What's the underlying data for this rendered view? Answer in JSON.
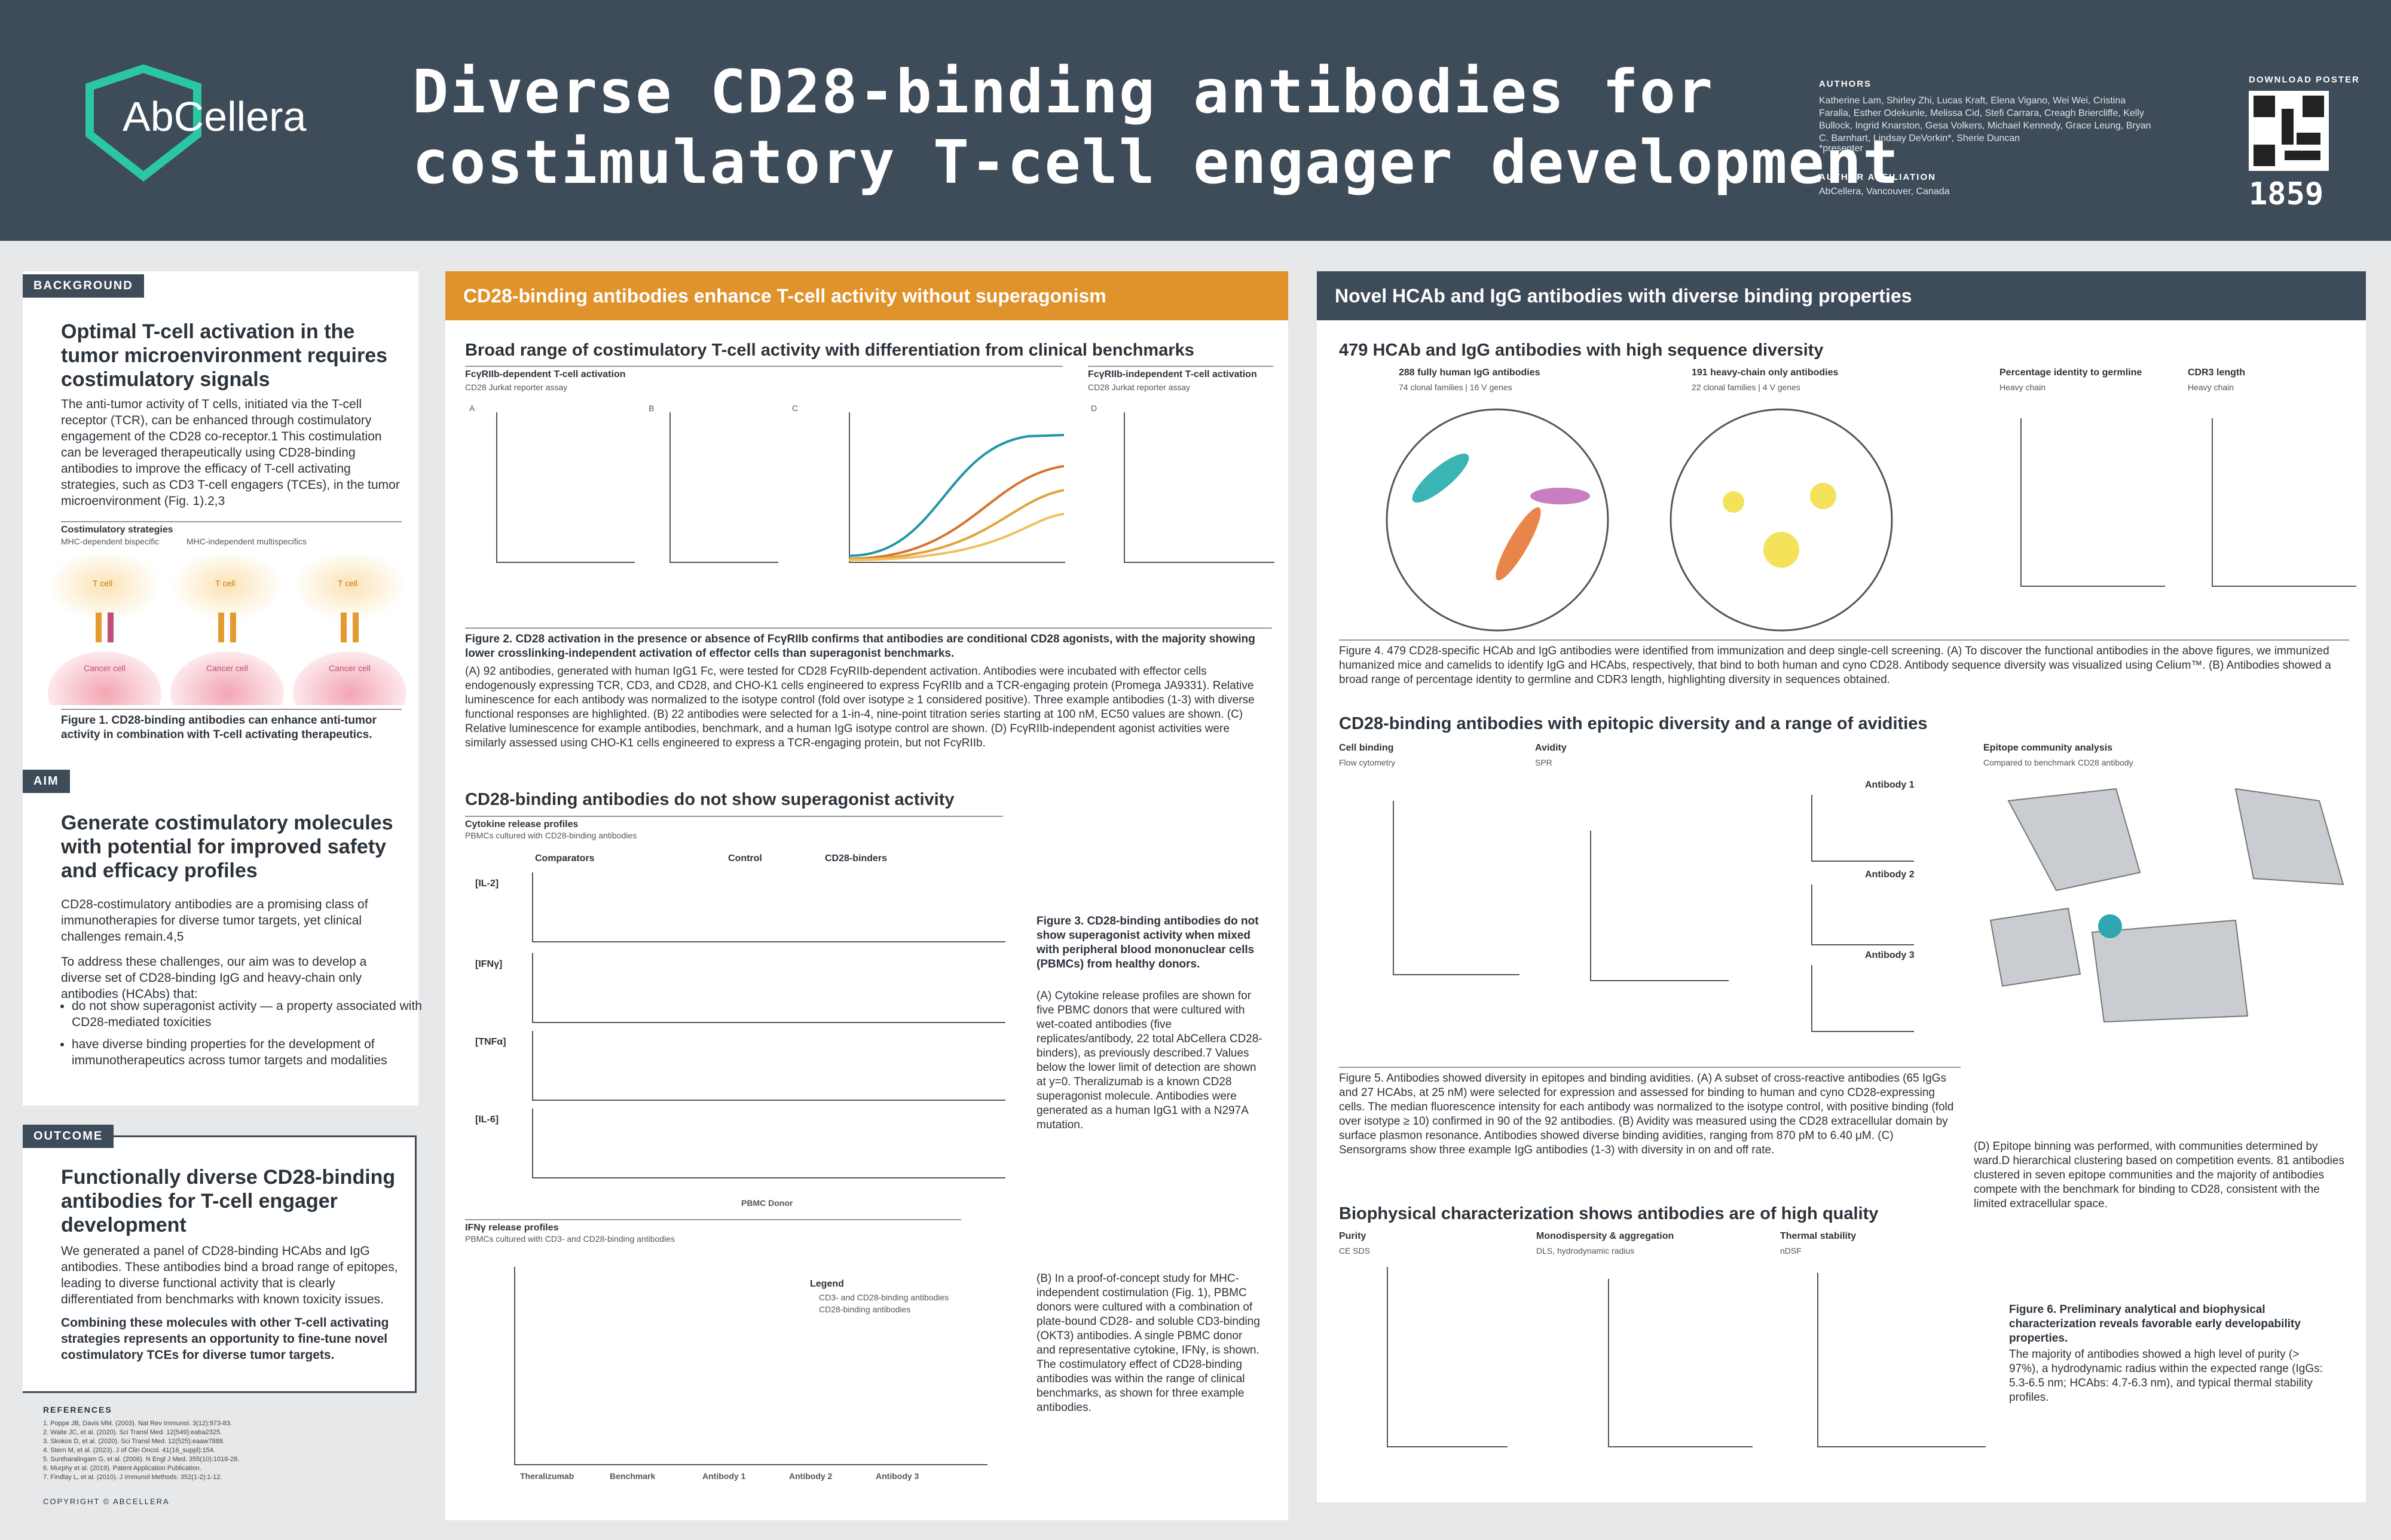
{
  "header": {
    "logo": "AbCellera",
    "title_line1": "Diverse CD28-binding antibodies for",
    "title_line2": "costimulatory T-cell engager development",
    "authors_label": "AUTHORS",
    "authors": "Katherine Lam, Shirley Zhi, Lucas Kraft, Elena Vigano, Wei Wei, Cristina Faralla, Esther Odekunle, Melissa Cid, Stefi Carrara, Creagh Briercliffe, Kelly Bullock, Ingrid Knarston, Gesa Volkers, Michael Kennedy, Grace Leung, Bryan C. Barnhart, Lindsay DeVorkin*, Sherie Duncan",
    "presenter": "*presenter",
    "affiliation_label": "AUTHOR AFFILIATION",
    "affiliation": "AbCellera, Vancouver, Canada",
    "download_label": "DOWNLOAD POSTER",
    "poster_number": "1859"
  },
  "left": {
    "background_label": "BACKGROUND",
    "background_heading": "Optimal T-cell activation in the tumor microenvironment requires costimulatory signals",
    "background_body": "The anti-tumor activity of T cells, initiated via the T-cell receptor (TCR), can be enhanced through costimulatory engagement of the CD28 co-receptor.1 This costimulation can be leveraged therapeutically using CD28-binding antibodies to improve the efficacy of T-cell activating strategies, such as CD3 T-cell engagers (TCEs), in the tumor microenvironment (Fig. 1).2,3",
    "strategies_heading": "Costimulatory strategies",
    "strategy_1": "MHC-dependent bispecific",
    "strategy_2": "MHC-independent multispecifics",
    "cell_labels": [
      "T cell",
      "T cell",
      "T cell",
      "Cancer cell",
      "Cancer cell",
      "Cancer cell"
    ],
    "figure1_caption": "Figure 1. CD28-binding antibodies can enhance anti-tumor activity in combination with T-cell activating therapeutics.",
    "aim_label": "AIM",
    "aim_heading": "Generate costimulatory molecules with potential for improved safety and efficacy profiles",
    "aim_intro": "CD28-costimulatory antibodies are a promising class of immunotherapies for diverse tumor targets, yet clinical challenges remain.4,5",
    "aim_goal": "To address these challenges, our aim was to develop a diverse set of CD28-binding IgG and heavy-chain only antibodies (HCAbs) that:",
    "aim_bullets": [
      "do not show superagonist activity — a property associated with CD28-mediated toxicities",
      "have diverse binding properties for the development of immunotherapeutics across tumor targets and modalities"
    ],
    "outcome_label": "OUTCOME",
    "outcome_heading": "Functionally diverse CD28-binding antibodies for T-cell engager development",
    "outcome_body": "We generated a panel of CD28-binding HCAbs and IgG antibodies. These antibodies bind a broad range of epitopes, leading to diverse functional activity that is clearly differentiated from benchmarks with known toxicity issues.",
    "outcome_bold": "Combining these molecules with other T-cell activating strategies represents an opportunity to fine-tune novel costimulatory TCEs for diverse tumor targets.",
    "references_label": "REFERENCES",
    "references": [
      "1. Poppe JB, Davis MM. (2003). Nat Rev Immunol. 3(12):973-83.",
      "2. Waite JC, et al. (2020). Sci Transl Med. 12(549):eaba2325.",
      "3. Skokos D, et al. (2020). Sci Transl Med. 12(525):eaaw7888.",
      "4. Stern M, et al. (2023). J of Clin Oncol. 41(16_suppl):154.",
      "5. Suntharalingam G, et al. (2006). N Engl J Med. 355(10):1018-28.",
      "6. Murphy et al. (2019). Patent Application Publication.",
      "7. Findlay L, et al. (2010). J Immunol Methods. 352(1-2):1-12."
    ],
    "copyright": "COPYRIGHT © ABCELLERA"
  },
  "middle": {
    "header": "CD28-binding antibodies enhance T-cell activity without superagonism",
    "section1": "Broad range of costimulatory T-cell activity with differentiation from clinical benchmarks",
    "fig2_dep": "FcγRIIb-dependent T-cell activation",
    "fig2_indep": "FcγRIIb-independent T-cell activation",
    "fig2_assay": "CD28 Jurkat reporter assay",
    "panel_letters": [
      "A",
      "B",
      "C",
      "D"
    ],
    "fig2_caption_bold": "Figure 2. CD28 activation in the presence or absence of FcγRIIb confirms that antibodies are conditional CD28 agonists, with the majority showing lower crosslinking-independent activation of effector cells than superagonist benchmarks.",
    "fig2_caption": "(A) 92 antibodies, generated with human IgG1 Fc, were tested for CD28 FcγRIIb-dependent activation. Antibodies were incubated with effector cells endogenously expressing TCR, CD3, and CD28, and CHO-K1 cells engineered to express FcγRIIb and a TCR-engaging protein (Promega JA9331). Relative luminescence for each antibody was normalized to the isotype control (fold over isotype ≥ 1 considered positive). Three example antibodies (1-3) with diverse functional responses are highlighted. (B) 22 antibodies were selected for a 1-in-4, nine-point titration series starting at 100 nM, EC50 values are shown. (C) Relative luminescence for example antibodies, benchmark, and a human IgG isotype control are shown. (D) FcγRIIb-independent agonist activities were similarly assessed using CHO-K1 cells engineered to express a TCR-engaging protein, but not FcγRIIb.",
    "section2": "CD28-binding antibodies do not show superagonist activity",
    "cytokine_heading": "Cytokine release profiles",
    "cytokine_sub": "PBMCs cultured with CD28-binding antibodies",
    "cytokines": [
      "[IL-2]",
      "[IFNγ]",
      "[TNFα]",
      "[IL-6]"
    ],
    "groups": [
      "Comparators",
      "Control",
      "CD28-binders"
    ],
    "x_label": "PBMC Donor",
    "fig3_caption_bold": "Figure 3. CD28-binding antibodies do not show superagonist activity when mixed with peripheral blood mononuclear cells (PBMCs) from healthy donors.",
    "fig3_caption": "(A) Cytokine release profiles are shown for five PBMC donors that were cultured with wet-coated antibodies (five replicates/antibody, 22 total AbCellera CD28-binders), as previously described.7 Values below the lower limit of detection are shown at y=0. Theralizumab is a known CD28 superagonist molecule. Antibodies were generated as a human IgG1 with a N297A mutation.",
    "ifn_heading": "IFNγ release profiles",
    "ifn_sub": "PBMCs cultured with CD3- and CD28-binding antibodies",
    "fig3b_categories": [
      "Theralizumab",
      "Benchmark",
      "Antibody 1",
      "Antibody 2",
      "Antibody 3"
    ],
    "legend_title": "Legend",
    "legend_items": [
      "CD3- and CD28-binding antibodies",
      "CD28-binding antibodies"
    ],
    "fig3b_caption": "(B) In a proof-of-concept study for MHC-independent costimulation (Fig. 1), PBMC donors were cultured with a combination of plate-bound CD28- and soluble CD3-binding (OKT3) antibodies. A single PBMC donor and representative cytokine, IFNγ, is shown. The costimulatory effect of CD28-binding antibodies was within the range of clinical benchmarks, as shown for three example antibodies."
  },
  "right": {
    "header": "Novel HCAb and IgG antibodies with diverse binding properties",
    "section1": "479 HCAb and IgG antibodies with high sequence diversity",
    "igg_count": "288 fully human IgG antibodies",
    "igg_sub": "74 clonal families  |  16 V genes",
    "hcab_count": "191 heavy-chain only antibodies",
    "hcab_sub": "22 clonal families  |  4 V genes",
    "identity_title": "Percentage identity to germline",
    "cdr3_title": "CDR3 length",
    "heavy_chain": "Heavy chain",
    "fig4_caption": "Figure 4. 479 CD28-specific HCAb and IgG antibodies were identified from immunization and deep single-cell screening. (A) To discover the functional antibodies in the above figures, we immunized humanized mice and camelids to identify IgG and HCAbs, respectively, that bind to both human and cyno CD28. Antibody sequence diversity was visualized using Celium™. (B) Antibodies showed a broad range of percentage identity to germline and CDR3 length, highlighting diversity in sequences obtained.",
    "section2": "CD28-binding antibodies with epitopic diversity and a range of avidities",
    "cell_binding": "Cell binding",
    "flow": "Flow cytometry",
    "avidity": "Avidity",
    "spr": "SPR",
    "sensor_titles": [
      "Antibody 1",
      "Antibody 2",
      "Antibody 3"
    ],
    "epitope_title": "Epitope community analysis",
    "epitope_sub": "Compared to benchmark CD28 antibody",
    "fig5_caption": "Figure 5. Antibodies showed diversity in epitopes and binding avidities. (A) A subset of cross-reactive antibodies (65 IgGs and 27 HCAbs, at 25 nM) were selected for expression and assessed for binding to human and cyno CD28-expressing cells. The median fluorescence intensity for each antibody was normalized to the isotype control, with positive binding (fold over isotype ≥ 10) confirmed in 90 of the 92 antibodies. (B) Avidity was measured using the CD28 extracellular domain by surface plasmon resonance. Antibodies showed diverse binding avidities, ranging from 870 pM to 6.40 μM. (C) Sensorgrams show three example IgG antibodies (1-3) with diversity in on and off rate.",
    "fig5d_caption": "(D) Epitope binning was performed, with communities determined by ward.D hierarchical clustering based on competition events. 81 antibodies clustered in seven epitope communities and the majority of antibodies compete with the benchmark for binding to CD28, consistent with the limited extracellular space.",
    "section3": "Biophysical characterization shows antibodies are of high quality",
    "purity": "Purity",
    "ce_sds": "CE SDS",
    "mono": "Monodispersity & aggregation",
    "dls": "DLS, hydrodynamic radius",
    "thermal": "Thermal stability",
    "ndsf": "nDSF",
    "fig6_caption_bold": "Figure 6. Preliminary analytical and biophysical characterization reveals favorable early developability properties.",
    "fig6_caption": "The majority of antibodies showed a high level of purity (> 97%), a hydrodynamic radius within the expected range (IgGs: 5.3-6.5 nm; HCAbs: 4.7-6.3 nm), and typical thermal stability profiles."
  }
}
